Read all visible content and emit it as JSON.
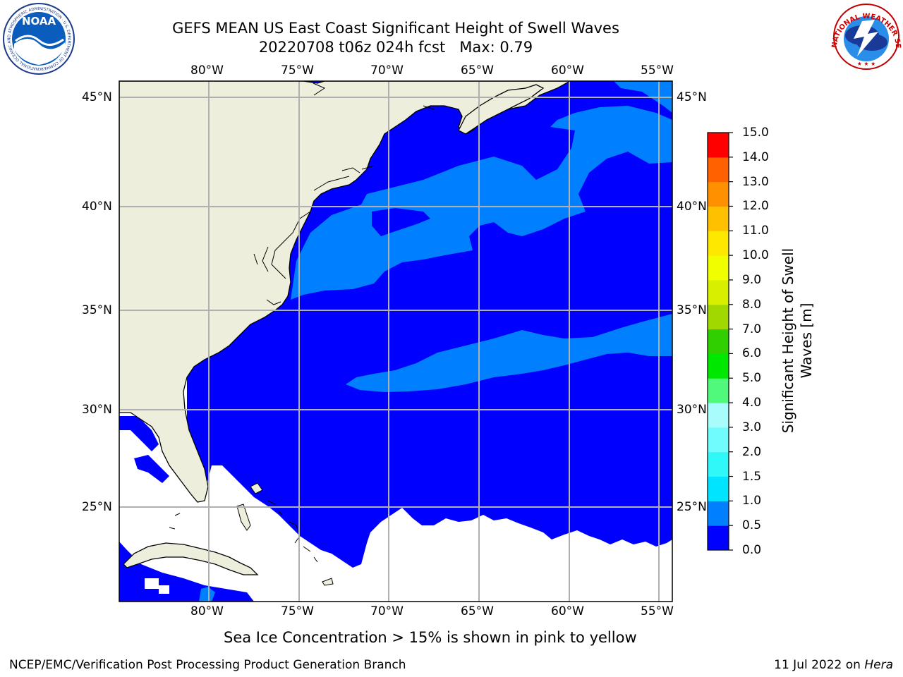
{
  "title_line1": "GEFS MEAN US East Coast Significant Height of Swell Waves",
  "title_line2": "20220708 t06z 024h fcst   Max: 0.79",
  "lon_labels": [
    "80°W",
    "75°W",
    "70°W",
    "65°W",
    "60°W",
    "55°W"
  ],
  "lat_labels": [
    "45°N",
    "40°N",
    "35°N",
    "30°N",
    "25°N"
  ],
  "colorbar": {
    "label_line1": "Significant Height of Swell",
    "label_line2": "Waves [m]",
    "ticks": [
      "0.0",
      "0.5",
      "1.0",
      "1.5",
      "2.0",
      "3.0",
      "4.0",
      "5.0",
      "6.0",
      "7.0",
      "8.0",
      "9.0",
      "10.0",
      "11.0",
      "12.0",
      "13.0",
      "14.0",
      "15.0"
    ],
    "colors": [
      "#0000ff",
      "#0080ff",
      "#00e4ff",
      "#30f8f8",
      "#70fcfc",
      "#a8fcfc",
      "#50f87c",
      "#00e800",
      "#30d000",
      "#a0d800",
      "#d8f000",
      "#f0ff00",
      "#ffe800",
      "#ffc000",
      "#ff9000",
      "#ff6000",
      "#ff3000",
      "#ff0000"
    ]
  },
  "note": "Sea Ice Concentration > 15% is shown in pink to yellow",
  "footer_left": "NCEP/EMC/Verification Post Processing Product Generation Branch",
  "footer_date": "11 Jul 2022 on ",
  "footer_host": "Hera",
  "logos": {
    "noaa_text": "NOAA",
    "noaa_ring": "NATIONAL OCEANIC AND ATMOSPHERIC ADMINISTRATION · U.S. DEPARTMENT OF COMMERCE",
    "nws_ring": "NATIONAL WEATHER SERVICE"
  },
  "map_colors": {
    "land": "#eeeedc",
    "low_swell": "#0000ff",
    "mid_swell": "#0080ff",
    "grid": "#b0b0b0"
  }
}
